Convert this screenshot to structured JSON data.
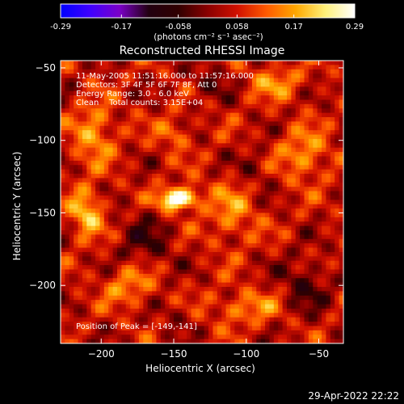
{
  "colorbar": {
    "ticks": [
      "-0.29",
      "-0.17",
      "-0.058",
      "0.058",
      "0.17",
      "0.29"
    ],
    "tick_values": [
      -0.29,
      -0.17,
      -0.058,
      0.058,
      0.17,
      0.29
    ],
    "range": [
      -0.29,
      0.29
    ],
    "unit_label": "(photons cm⁻² s⁻¹ asec⁻²)",
    "gradient": [
      "#0000ff",
      "#3f00ff",
      "#7b00c8",
      "#220010",
      "#300000",
      "#8a0000",
      "#d01000",
      "#ff5a00",
      "#ffa800",
      "#fff17a",
      "#ffffff"
    ]
  },
  "chart_data": {
    "type": "heatmap",
    "title": "Reconstructed RHESSI Image",
    "xlabel": "Heliocentric X (arcsec)",
    "ylabel": "Heliocentric Y (arcsec)",
    "xlim": [
      -228,
      -33
    ],
    "ylim": [
      -240,
      -45
    ],
    "xticks": [
      -200,
      -150,
      -100,
      -50
    ],
    "yticks": [
      -50,
      -100,
      -150,
      -200
    ],
    "x_tick_labels": [
      "−200",
      "−150",
      "−100",
      "−50"
    ],
    "y_tick_labels": [
      "−50",
      "−100",
      "−150",
      "−200"
    ],
    "peak_position": [
      -149,
      -141
    ],
    "info_lines": [
      "11-May-2005 11:51:16.000 to 11:57:16.000",
      "Detectors: 3F 4F 5F 6F 7F 8F, Att 0",
      "Energy Range: 3.0 - 6.0 keV",
      "Clean    Total counts: 3.15E+04"
    ],
    "peak_label": "Position of Peak = [-149,-141]",
    "regions": [
      {
        "x": -149,
        "y": -141,
        "sx": 8,
        "sy": 5,
        "amp": 0.28
      },
      {
        "x": -138,
        "y": -138,
        "sx": 6,
        "sy": 5,
        "amp": 0.1
      },
      {
        "x": -210,
        "y": -150,
        "sx": 8,
        "sy": 12,
        "amp": 0.16
      },
      {
        "x": -205,
        "y": -95,
        "sx": 10,
        "sy": 14,
        "amp": 0.13
      },
      {
        "x": -110,
        "y": -150,
        "sx": 12,
        "sy": 15,
        "amp": 0.1
      },
      {
        "x": -60,
        "y": -110,
        "sx": 12,
        "sy": 12,
        "amp": 0.12
      },
      {
        "x": -80,
        "y": -60,
        "sx": 14,
        "sy": 8,
        "amp": 0.1
      },
      {
        "x": -150,
        "y": -95,
        "sx": 8,
        "sy": 8,
        "amp": 0.09
      },
      {
        "x": -180,
        "y": -200,
        "sx": 12,
        "sy": 10,
        "amp": 0.11
      },
      {
        "x": -100,
        "y": -215,
        "sx": 18,
        "sy": 8,
        "amp": 0.1
      },
      {
        "x": -170,
        "y": -170,
        "sx": 14,
        "sy": 14,
        "amp": -0.08
      },
      {
        "x": -125,
        "y": -60,
        "sx": 10,
        "sy": 8,
        "amp": -0.07
      },
      {
        "x": -60,
        "y": -200,
        "sx": 12,
        "sy": 14,
        "amp": -0.09
      },
      {
        "x": -95,
        "y": -120,
        "sx": 8,
        "sy": 10,
        "amp": -0.06
      },
      {
        "x": -150,
        "y": -220,
        "sx": 10,
        "sy": 8,
        "amp": -0.04
      }
    ]
  },
  "footer": {
    "date": "29-Apr-2022 22:22"
  }
}
